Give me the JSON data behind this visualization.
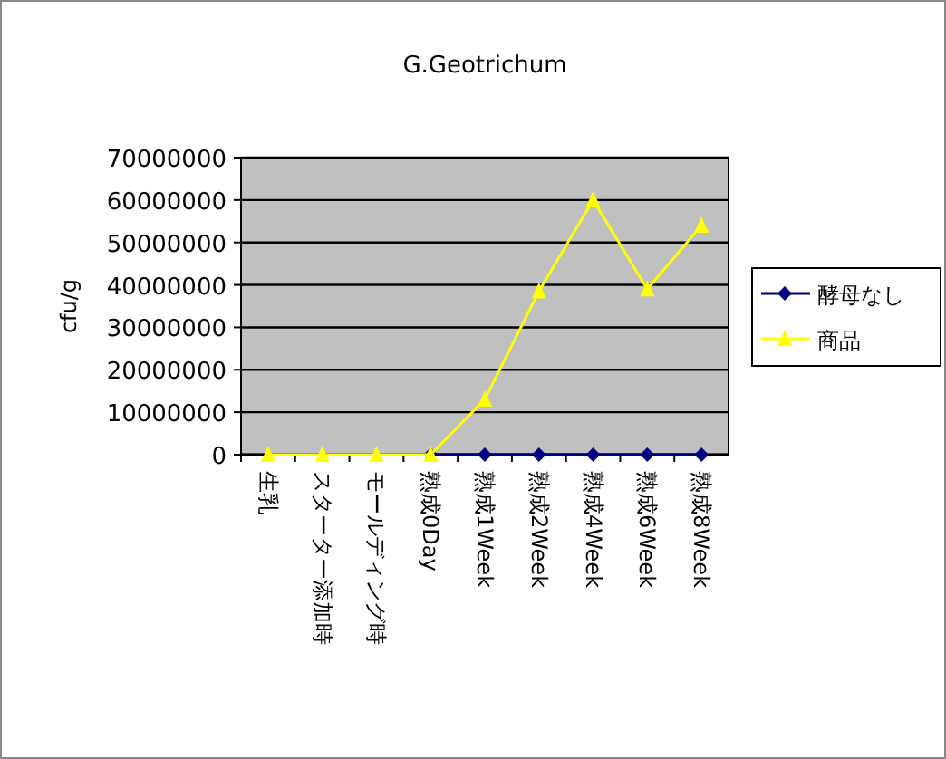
{
  "chart_data": {
    "type": "line",
    "title": "G.Geotrichum",
    "ylabel": "cfu/g",
    "categories": [
      "生乳",
      "スターター添加時",
      "モールディング時",
      "熟成0Day",
      "熟成1Week",
      "熟成2Week",
      "熟成4Week",
      "熟成6Week",
      "熟成8Week"
    ],
    "series": [
      {
        "name": "酵母なし",
        "color": "#000080",
        "marker": "diamond",
        "values": [
          null,
          null,
          null,
          0,
          0,
          0,
          0,
          0,
          0
        ]
      },
      {
        "name": "商品",
        "color": "#ffff00",
        "marker": "triangle",
        "values": [
          0,
          0,
          0,
          0,
          13000000,
          38500000,
          60000000,
          39000000,
          54000000
        ]
      }
    ],
    "ylim": [
      0,
      70000000
    ],
    "yticks": [
      0,
      10000000,
      20000000,
      30000000,
      40000000,
      50000000,
      60000000,
      70000000
    ],
    "grid": "y",
    "legend": "right"
  }
}
